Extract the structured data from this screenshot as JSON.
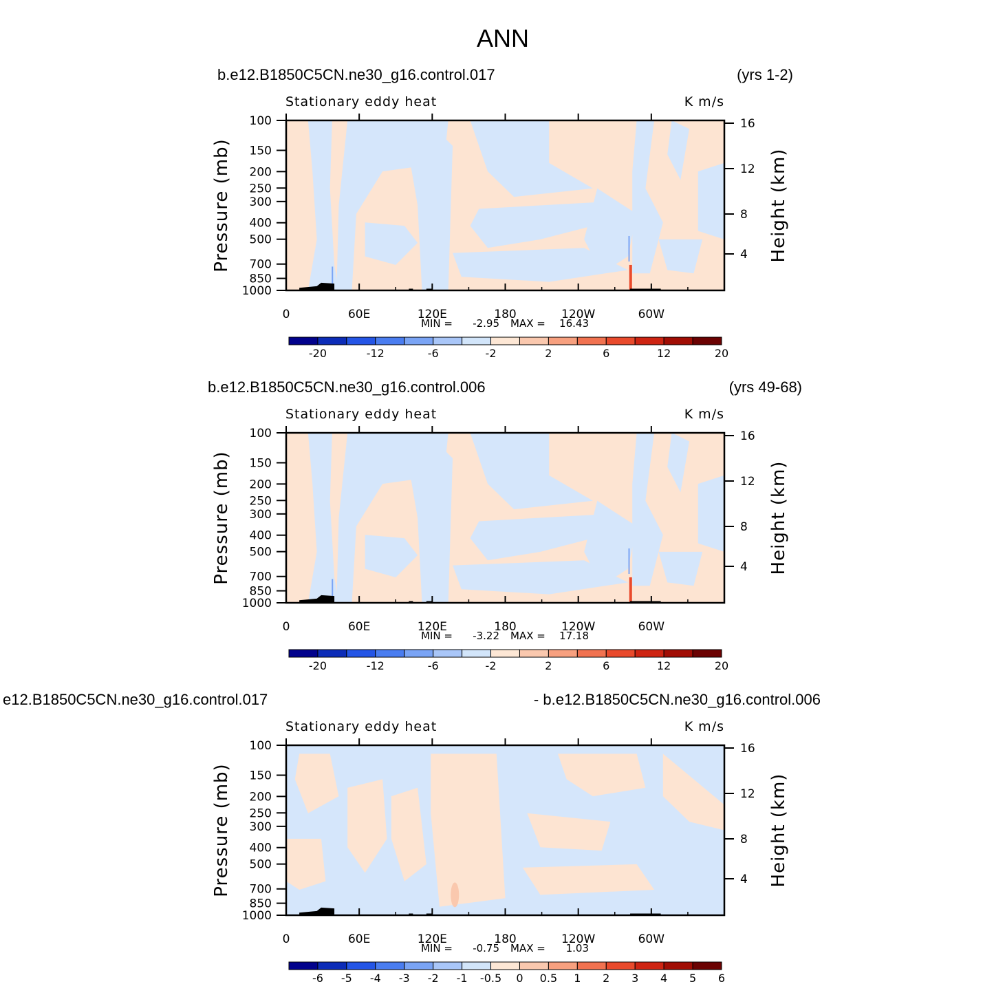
{
  "figure_title": "ANN",
  "chart_data": [
    {
      "type": "heatmap",
      "case_title": "b.e12.B1850C5CN.ne30_g16.control.017",
      "years_label": "(yrs 1-2)",
      "variable_label": "Stationary eddy heat",
      "units_label": "K m/s",
      "ylabel": "Pressure (mb)",
      "ylabel_right": "Height (km)",
      "x_ticks": [
        "0",
        "60E",
        "120E",
        "180",
        "120W",
        "60W"
      ],
      "y_ticks": [
        "100",
        "150",
        "200",
        "250",
        "300",
        "400",
        "500",
        "700",
        "850",
        "1000"
      ],
      "height_ticks": [
        "16",
        "12",
        "8",
        "4"
      ],
      "min_label": "MIN =",
      "min_value": "-2.95",
      "max_label": "MAX =",
      "max_value": "16.43",
      "colorbar_labels": [
        "-20",
        "-12",
        "-6",
        "-2",
        "2",
        "6",
        "12",
        "20"
      ],
      "colorbar_colors": [
        "#02028c",
        "#0c2cb8",
        "#2455e6",
        "#4a7df0",
        "#7aa4f5",
        "#a9c6f8",
        "#d2e5fa",
        "#fde7d5",
        "#fac8ae",
        "#f7a07f",
        "#f17250",
        "#e94a2c",
        "#ce2412",
        "#a10d04",
        "#6b0202"
      ],
      "x_range": [
        0,
        360
      ],
      "y_range": [
        1000,
        100
      ]
    },
    {
      "type": "heatmap",
      "case_title": "b.e12.B1850C5CN.ne30_g16.control.006",
      "years_label": "(yrs 49-68)",
      "variable_label": "Stationary eddy heat",
      "units_label": "K m/s",
      "ylabel": "Pressure (mb)",
      "ylabel_right": "Height (km)",
      "x_ticks": [
        "0",
        "60E",
        "120E",
        "180",
        "120W",
        "60W"
      ],
      "y_ticks": [
        "100",
        "150",
        "200",
        "250",
        "300",
        "400",
        "500",
        "700",
        "850",
        "1000"
      ],
      "height_ticks": [
        "16",
        "12",
        "8",
        "4"
      ],
      "min_label": "MIN =",
      "min_value": "-3.22",
      "max_label": "MAX =",
      "max_value": "17.18",
      "colorbar_labels": [
        "-20",
        "-12",
        "-6",
        "-2",
        "2",
        "6",
        "12",
        "20"
      ],
      "colorbar_colors": [
        "#02028c",
        "#0c2cb8",
        "#2455e6",
        "#4a7df0",
        "#7aa4f5",
        "#a9c6f8",
        "#d2e5fa",
        "#fde7d5",
        "#fac8ae",
        "#f7a07f",
        "#f17250",
        "#e94a2c",
        "#ce2412",
        "#a10d04",
        "#6b0202"
      ],
      "x_range": [
        0,
        360
      ],
      "y_range": [
        1000,
        100
      ]
    },
    {
      "type": "heatmap",
      "case_title": "e12.B1850C5CN.ne30_g16.control.017",
      "years_label": "- b.e12.B1850C5CN.ne30_g16.control.006",
      "variable_label": "Stationary eddy heat",
      "units_label": "K m/s",
      "ylabel": "Pressure (mb)",
      "ylabel_right": "Height (km)",
      "x_ticks": [
        "0",
        "60E",
        "120E",
        "180",
        "120W",
        "60W"
      ],
      "y_ticks": [
        "100",
        "150",
        "200",
        "250",
        "300",
        "400",
        "500",
        "700",
        "850",
        "1000"
      ],
      "height_ticks": [
        "16",
        "12",
        "8",
        "4"
      ],
      "min_label": "MIN =",
      "min_value": "-0.75",
      "max_label": "MAX =",
      "max_value": "1.03",
      "colorbar_labels": [
        "-6",
        "-5",
        "-4",
        "-3",
        "-2",
        "-1",
        "-0.5",
        "0",
        "0.5",
        "1",
        "2",
        "3",
        "4",
        "5",
        "6"
      ],
      "colorbar_colors": [
        "#02028c",
        "#0c2cb8",
        "#2455e6",
        "#4a7df0",
        "#7aa4f5",
        "#a9c6f8",
        "#d2e5fa",
        "#fde7d5",
        "#fac8ae",
        "#f7a07f",
        "#f17250",
        "#e94a2c",
        "#ce2412",
        "#a10d04",
        "#6b0202"
      ],
      "x_range": [
        0,
        360
      ],
      "y_range": [
        1000,
        100
      ]
    }
  ]
}
